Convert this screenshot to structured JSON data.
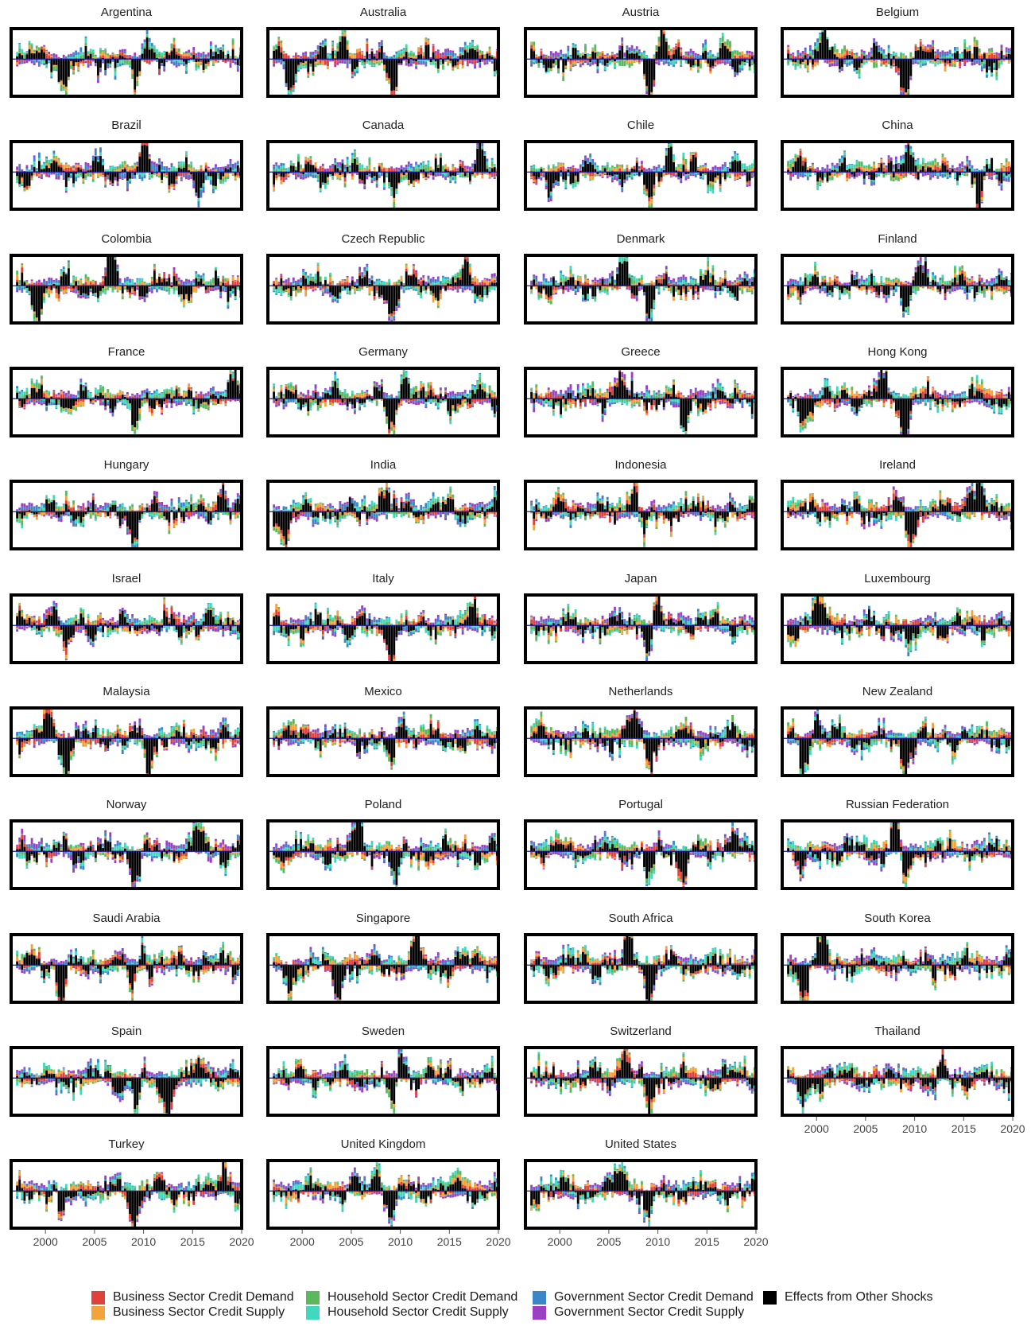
{
  "colors": {
    "business_demand": "#e0413a",
    "business_supply": "#f2a33a",
    "household_demand": "#5cb85c",
    "household_supply": "#40d9c0",
    "government_demand": "#3a86c8",
    "government_supply": "#9b3fc4",
    "other": "#000000",
    "frame": "#000000",
    "zero_line": "#1a1aa0"
  },
  "chart_data": {
    "type": "bar",
    "stacked": true,
    "x_range": [
      1996.5,
      2020
    ],
    "x_ticks": [
      2000,
      2005,
      2010,
      2015,
      2020
    ],
    "x_tick_labels": [
      "2000",
      "2005",
      "2010",
      "2015",
      "2020"
    ],
    "grid": false,
    "legend_position": "bottom",
    "legend": [
      "Business Sector Credit Demand",
      "Business Sector Credit Supply",
      "Household Sector Credit Demand",
      "Household Sector Credit Supply",
      "Government Sector Credit Demand",
      "Government Sector Credit Supply",
      "Effects from Other Shocks"
    ],
    "panels": [
      {
        "name": "Argentina",
        "seed": 11,
        "crisis": [
          2001.9,
          2009.0
        ],
        "up": [
          2010.0
        ],
        "mix": [
          0.2,
          0.15,
          0.2,
          0.15,
          0.15,
          0.1
        ]
      },
      {
        "name": "Australia",
        "seed": 12,
        "crisis": [
          1998.6,
          2009.0
        ],
        "up": [
          2004.0
        ],
        "mix": [
          0.35,
          0.15,
          0.1,
          0.1,
          0.15,
          0.05
        ]
      },
      {
        "name": "Austria",
        "seed": 13,
        "crisis": [
          2009.0
        ],
        "up": [
          2010.3
        ],
        "mix": [
          0.15,
          0.15,
          0.3,
          0.15,
          0.1,
          0.1
        ]
      },
      {
        "name": "Belgium",
        "seed": 14,
        "crisis": [
          2009.0
        ],
        "up": [
          2000.5
        ],
        "mix": [
          0.2,
          0.2,
          0.3,
          0.1,
          0.1,
          0.05
        ]
      },
      {
        "name": "Brazil",
        "seed": 15,
        "crisis": [
          2015.5
        ],
        "up": [
          2010.0
        ],
        "mix": [
          0.15,
          0.15,
          0.1,
          0.15,
          0.3,
          0.1
        ]
      },
      {
        "name": "Canada",
        "seed": 16,
        "crisis": [
          2009.2
        ],
        "up": [
          2018.0
        ],
        "mix": [
          0.2,
          0.2,
          0.25,
          0.15,
          0.05,
          0.05
        ]
      },
      {
        "name": "Chile",
        "seed": 17,
        "crisis": [
          1998.8,
          2009.0
        ],
        "up": [
          2011.0
        ],
        "mix": [
          0.2,
          0.15,
          0.2,
          0.25,
          0.05,
          0.05
        ]
      },
      {
        "name": "China",
        "seed": 18,
        "crisis": [
          2016.5
        ],
        "up": [
          2009.5
        ],
        "mix": [
          0.25,
          0.15,
          0.2,
          0.2,
          0.1,
          0.05
        ]
      },
      {
        "name": "Colombia",
        "seed": 19,
        "crisis": [
          1999.0
        ],
        "up": [
          2006.5
        ],
        "mix": [
          0.2,
          0.25,
          0.2,
          0.15,
          0.1,
          0.05
        ]
      },
      {
        "name": "Czech Republic",
        "seed": 20,
        "crisis": [
          2009.0
        ],
        "up": [
          2016.5
        ],
        "mix": [
          0.2,
          0.3,
          0.15,
          0.2,
          0.05,
          0.05
        ]
      },
      {
        "name": "Denmark",
        "seed": 21,
        "crisis": [
          2009.0
        ],
        "up": [
          2006.5
        ],
        "mix": [
          0.15,
          0.15,
          0.25,
          0.2,
          0.1,
          0.1
        ]
      },
      {
        "name": "Finland",
        "seed": 22,
        "crisis": [
          2009.0
        ],
        "up": [
          2011.0
        ],
        "mix": [
          0.15,
          0.15,
          0.25,
          0.2,
          0.1,
          0.1
        ]
      },
      {
        "name": "France",
        "seed": 23,
        "crisis": [
          2009.0
        ],
        "up": [
          2019.3
        ],
        "mix": [
          0.25,
          0.2,
          0.2,
          0.2,
          0.05,
          0.05
        ]
      },
      {
        "name": "Germany",
        "seed": 24,
        "crisis": [
          2009.0
        ],
        "up": [
          2010.5
        ],
        "mix": [
          0.15,
          0.15,
          0.25,
          0.2,
          0.1,
          0.1
        ]
      },
      {
        "name": "Greece",
        "seed": 25,
        "crisis": [
          2012.5
        ],
        "up": [
          2006.0
        ],
        "mix": [
          0.2,
          0.15,
          0.15,
          0.15,
          0.1,
          0.25
        ]
      },
      {
        "name": "Hong Kong",
        "seed": 26,
        "crisis": [
          1998.5,
          2009.0
        ],
        "up": [
          2006.5
        ],
        "mix": [
          0.3,
          0.2,
          0.15,
          0.25,
          0.05,
          0.05
        ]
      },
      {
        "name": "Hungary",
        "seed": 27,
        "crisis": [
          2009.0
        ],
        "up": [
          2018.0
        ],
        "mix": [
          0.2,
          0.15,
          0.2,
          0.15,
          0.2,
          0.1
        ]
      },
      {
        "name": "India",
        "seed": 28,
        "crisis": [
          1998.0
        ],
        "up": [
          2008.0
        ],
        "mix": [
          0.15,
          0.15,
          0.15,
          0.25,
          0.25,
          0.05
        ]
      },
      {
        "name": "Indonesia",
        "seed": 29,
        "crisis": [
          2008.5
        ],
        "up": [
          2007.5
        ],
        "mix": [
          0.3,
          0.25,
          0.1,
          0.15,
          0.1,
          0.1
        ]
      },
      {
        "name": "Ireland",
        "seed": 30,
        "crisis": [
          2009.5
        ],
        "up": [
          2015.5,
          2016.5
        ],
        "mix": [
          0.3,
          0.3,
          0.1,
          0.15,
          0.05,
          0.1
        ]
      },
      {
        "name": "Israel",
        "seed": 31,
        "crisis": [
          2002.0
        ],
        "up": [
          2000.5
        ],
        "mix": [
          0.3,
          0.15,
          0.15,
          0.15,
          0.15,
          0.1
        ]
      },
      {
        "name": "Italy",
        "seed": 32,
        "crisis": [
          2009.0
        ],
        "up": [
          2017.5
        ],
        "mix": [
          0.2,
          0.25,
          0.15,
          0.2,
          0.15,
          0.05
        ]
      },
      {
        "name": "Japan",
        "seed": 33,
        "crisis": [
          2009.0
        ],
        "up": [
          2009.8
        ],
        "mix": [
          0.2,
          0.2,
          0.2,
          0.2,
          0.1,
          0.1
        ]
      },
      {
        "name": "Luxembourg",
        "seed": 34,
        "crisis": [
          2009.5
        ],
        "up": [
          2000.0
        ],
        "mix": [
          0.25,
          0.3,
          0.15,
          0.15,
          0.1,
          0.05
        ]
      },
      {
        "name": "Malaysia",
        "seed": 35,
        "crisis": [
          2010.5,
          2002.0
        ],
        "up": [
          2000.0
        ],
        "mix": [
          0.3,
          0.15,
          0.2,
          0.15,
          0.1,
          0.1
        ]
      },
      {
        "name": "Mexico",
        "seed": 36,
        "crisis": [
          2009.0
        ],
        "up": [
          2010.0
        ],
        "mix": [
          0.3,
          0.2,
          0.2,
          0.15,
          0.1,
          0.05
        ]
      },
      {
        "name": "Netherlands",
        "seed": 37,
        "crisis": [
          2009.0
        ],
        "up": [
          2007.5
        ],
        "mix": [
          0.15,
          0.2,
          0.3,
          0.2,
          0.05,
          0.1
        ]
      },
      {
        "name": "New Zealand",
        "seed": 38,
        "crisis": [
          2009.0,
          1998.5
        ],
        "up": [
          2000.0
        ],
        "mix": [
          0.15,
          0.2,
          0.25,
          0.25,
          0.1,
          0.05
        ]
      },
      {
        "name": "Norway",
        "seed": 39,
        "crisis": [
          2009.0
        ],
        "up": [
          2015.5
        ],
        "mix": [
          0.2,
          0.1,
          0.15,
          0.15,
          0.15,
          0.25
        ]
      },
      {
        "name": "Poland",
        "seed": 40,
        "crisis": [
          2009.5
        ],
        "up": [
          2005.5
        ],
        "mix": [
          0.2,
          0.25,
          0.25,
          0.15,
          0.1,
          0.05
        ]
      },
      {
        "name": "Portugal",
        "seed": 41,
        "crisis": [
          2009.0,
          2012.5
        ],
        "up": [
          2017.5
        ],
        "mix": [
          0.3,
          0.15,
          0.25,
          0.15,
          0.1,
          0.05
        ]
      },
      {
        "name": "Russian Federation",
        "seed": 42,
        "crisis": [
          2009.0,
          1998.5
        ],
        "up": [
          2008.0
        ],
        "mix": [
          0.2,
          0.3,
          0.1,
          0.3,
          0.05,
          0.05
        ]
      },
      {
        "name": "Saudi Arabia",
        "seed": 43,
        "crisis": [
          2001.5,
          2009.0
        ],
        "up": [
          2009.5
        ],
        "mix": [
          0.3,
          0.2,
          0.2,
          0.15,
          0.1,
          0.05
        ]
      },
      {
        "name": "Singapore",
        "seed": 44,
        "crisis": [
          2003.5,
          1998.5
        ],
        "up": [
          2011.5
        ],
        "mix": [
          0.2,
          0.3,
          0.1,
          0.2,
          0.1,
          0.1
        ]
      },
      {
        "name": "South Africa",
        "seed": 45,
        "crisis": [
          2009.0
        ],
        "up": [
          2007.0
        ],
        "mix": [
          0.2,
          0.3,
          0.1,
          0.3,
          0.05,
          0.05
        ]
      },
      {
        "name": "South Korea",
        "seed": 46,
        "crisis": [
          1998.5
        ],
        "up": [
          2000.5
        ],
        "mix": [
          0.2,
          0.2,
          0.1,
          0.3,
          0.1,
          0.1
        ]
      },
      {
        "name": "Spain",
        "seed": 47,
        "crisis": [
          2009.0,
          2012.5
        ],
        "up": [
          2016.0
        ],
        "mix": [
          0.2,
          0.15,
          0.15,
          0.35,
          0.1,
          0.05
        ]
      },
      {
        "name": "Sweden",
        "seed": 48,
        "crisis": [
          2009.0
        ],
        "up": [
          2010.0
        ],
        "mix": [
          0.2,
          0.15,
          0.2,
          0.2,
          0.1,
          0.15
        ]
      },
      {
        "name": "Switzerland",
        "seed": 49,
        "crisis": [
          2009.0
        ],
        "up": [
          2006.5
        ],
        "mix": [
          0.25,
          0.25,
          0.25,
          0.15,
          0.05,
          0.05
        ]
      },
      {
        "name": "Thailand",
        "seed": 50,
        "crisis": [
          1998.5,
          2012.0
        ],
        "up": [
          2012.5
        ],
        "mix": [
          0.3,
          0.2,
          0.15,
          0.2,
          0.1,
          0.05
        ]
      },
      {
        "name": "Turkey",
        "seed": 51,
        "crisis": [
          2001.5,
          2009.0
        ],
        "up": [
          2018.0
        ],
        "mix": [
          0.2,
          0.2,
          0.2,
          0.25,
          0.1,
          0.05
        ]
      },
      {
        "name": "United Kingdom",
        "seed": 52,
        "crisis": [
          2009.0
        ],
        "up": [
          2007.5
        ],
        "mix": [
          0.15,
          0.3,
          0.15,
          0.25,
          0.1,
          0.05
        ]
      },
      {
        "name": "United States",
        "seed": 53,
        "crisis": [
          2009.0
        ],
        "up": [
          2006.0
        ],
        "mix": [
          0.2,
          0.25,
          0.15,
          0.2,
          0.15,
          0.05
        ]
      }
    ]
  }
}
